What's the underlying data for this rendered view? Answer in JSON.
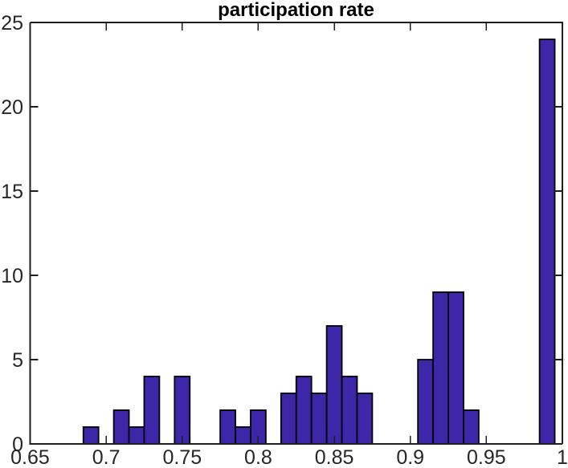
{
  "chart_data": {
    "type": "bar",
    "subtype": "histogram",
    "title": "participation rate",
    "xlabel": "",
    "ylabel": "",
    "xlim": [
      0.65,
      1.0
    ],
    "ylim": [
      0,
      25
    ],
    "grid": false,
    "legend": null,
    "bin_width": 0.01,
    "bin_centers": [
      0.69,
      0.71,
      0.72,
      0.73,
      0.75,
      0.78,
      0.79,
      0.8,
      0.82,
      0.83,
      0.84,
      0.85,
      0.86,
      0.87,
      0.91,
      0.92,
      0.93,
      0.94,
      0.99
    ],
    "counts": [
      1,
      2,
      1,
      4,
      4,
      2,
      1,
      2,
      3,
      4,
      3,
      7,
      4,
      3,
      5,
      9,
      9,
      2,
      24
    ],
    "x_ticks": [
      0.65,
      0.7,
      0.75,
      0.8,
      0.85,
      0.9,
      0.95,
      1
    ],
    "x_tick_labels": [
      "0.65",
      "0.7",
      "0.75",
      "0.8",
      "0.85",
      "0.9",
      "0.95",
      "1"
    ],
    "y_ticks": [
      0,
      5,
      10,
      15,
      20,
      25
    ],
    "y_tick_labels": [
      "0",
      "5",
      "10",
      "15",
      "20",
      "25"
    ],
    "colors": {
      "bar_fill": "#3E26A8",
      "bar_edge": "#000000",
      "axis": "#1f1f1f",
      "tick_label": "#262626",
      "title": "#000000",
      "background": "#ffffff"
    }
  }
}
